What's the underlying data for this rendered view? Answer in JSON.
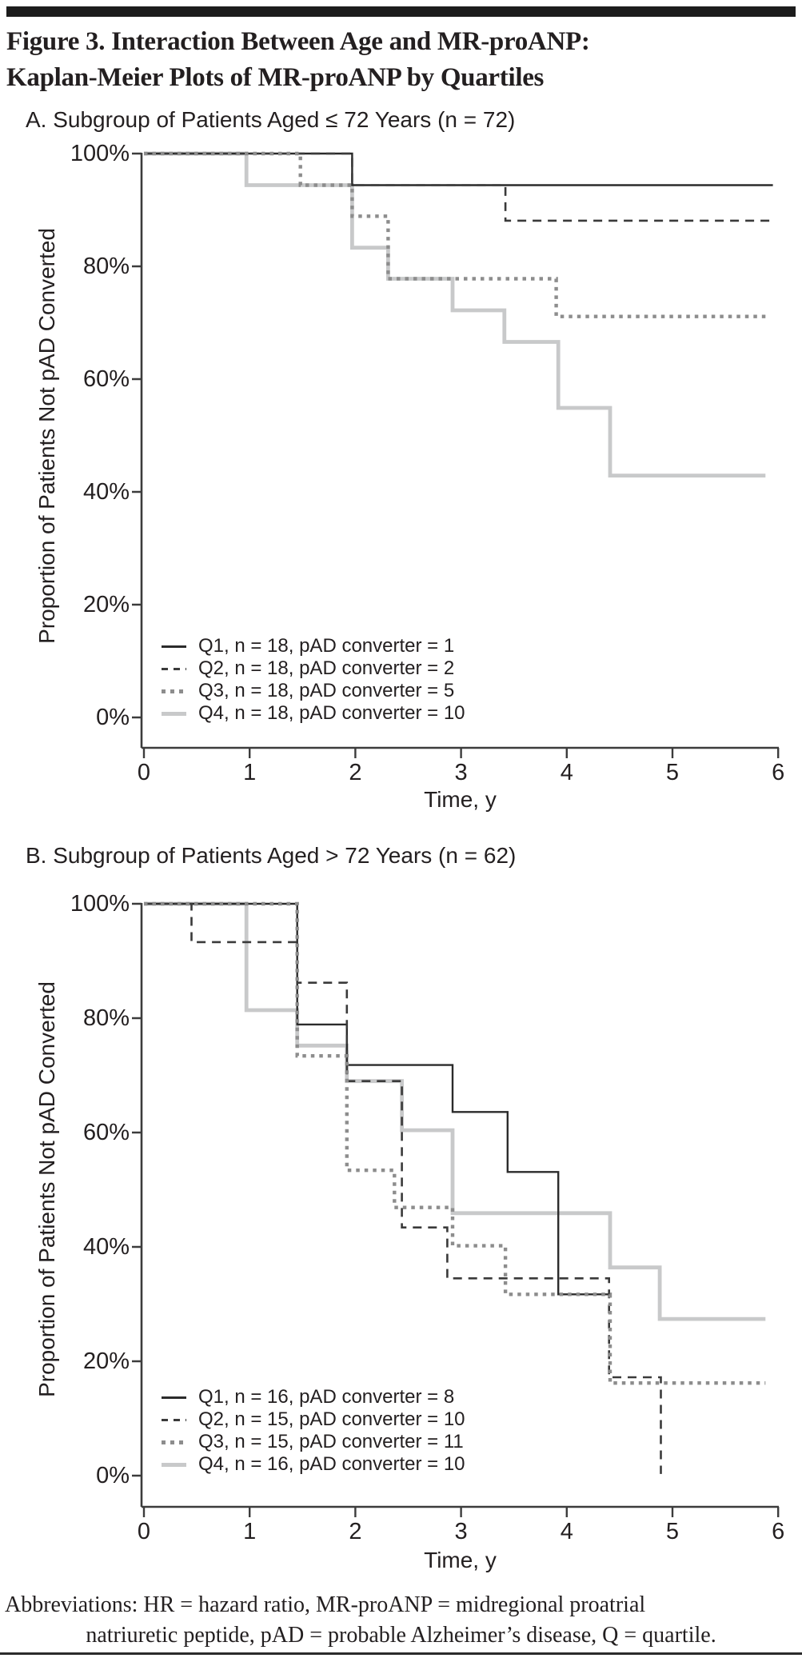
{
  "figure": {
    "title_line1": "Figure 3. Interaction Between Age and MR-proANP:",
    "title_line2": "Kaplan-Meier Plots of MR-proANP by Quartiles",
    "footer_line1": "Abbreviations: HR = hazard ratio, MR-proANP = midregional proatrial",
    "footer_line2": "natriuretic peptide, pAD = probable Alzheimer’s disease, Q = quartile."
  },
  "colors": {
    "q1_black": "#2b2b2b",
    "q2_dark_dashed": "#3a3a3a",
    "q3_gray_dotted": "#8d8d8d",
    "q4_light_gray": "#c8c9ca",
    "axis": "#3c3c3c",
    "text": "#231f20"
  },
  "chart_data": [
    {
      "type": "line",
      "subtype": "kaplan-meier-step",
      "panel_label": "A. Subgroup of Patients Aged ≤ 72 Years (n = 72)",
      "xlabel": "Time, y",
      "ylabel": "Proportion of Patients Not pAD Converted",
      "xlim": [
        0,
        6
      ],
      "ylim": [
        0,
        100
      ],
      "x_ticks": [
        0,
        1,
        2,
        3,
        4,
        5,
        6
      ],
      "y_tick_labels": [
        "100%",
        "80%",
        "60%",
        "40%",
        "20%",
        "0%"
      ],
      "y_tick_values": [
        100,
        80,
        60,
        40,
        20,
        0
      ],
      "grid": false,
      "legend_position": "inside-bottom-left",
      "series": [
        {
          "name": "Q1",
          "label": "Q1, n = 18, pAD converter = 1",
          "style": "solid-black",
          "steps": [
            [
              0,
              100
            ],
            [
              1.97,
              100
            ],
            [
              1.97,
              94.4
            ],
            [
              5.95,
              94.4
            ]
          ]
        },
        {
          "name": "Q2",
          "label": "Q2, n = 18, pAD converter = 2",
          "style": "dashed-black",
          "steps": [
            [
              0,
              100
            ],
            [
              1.97,
              100
            ],
            [
              1.97,
              94.4
            ],
            [
              3.42,
              94.4
            ],
            [
              3.42,
              88.1
            ],
            [
              5.95,
              88.1
            ]
          ]
        },
        {
          "name": "Q3",
          "label": "Q3, n = 18, pAD converter = 5",
          "style": "dotted-gray",
          "steps": [
            [
              0,
              100
            ],
            [
              1.48,
              100
            ],
            [
              1.48,
              94.4
            ],
            [
              1.97,
              94.4
            ],
            [
              1.97,
              88.9
            ],
            [
              2.31,
              88.9
            ],
            [
              2.31,
              77.8
            ],
            [
              3.9,
              77.8
            ],
            [
              3.9,
              71.1
            ],
            [
              5.88,
              71.1
            ]
          ]
        },
        {
          "name": "Q4",
          "label": "Q4, n = 18, pAD converter = 10",
          "style": "solid-lightgray",
          "steps": [
            [
              0,
              100
            ],
            [
              0.97,
              100
            ],
            [
              0.97,
              94.4
            ],
            [
              1.97,
              94.4
            ],
            [
              1.97,
              83.3
            ],
            [
              2.31,
              83.3
            ],
            [
              2.31,
              77.8
            ],
            [
              2.92,
              77.8
            ],
            [
              2.92,
              72.2
            ],
            [
              3.41,
              72.2
            ],
            [
              3.41,
              66.6
            ],
            [
              3.92,
              66.6
            ],
            [
              3.92,
              54.9
            ],
            [
              4.41,
              54.9
            ],
            [
              4.41,
              42.9
            ],
            [
              5.88,
              42.9
            ]
          ]
        }
      ]
    },
    {
      "type": "line",
      "subtype": "kaplan-meier-step",
      "panel_label": "B. Subgroup of Patients Aged > 72 Years (n = 62)",
      "xlabel": "Time, y",
      "ylabel": "Proportion of Patients Not pAD Converted",
      "xlim": [
        0,
        6
      ],
      "ylim": [
        0,
        100
      ],
      "x_ticks": [
        0,
        1,
        2,
        3,
        4,
        5,
        6
      ],
      "y_tick_labels": [
        "100%",
        "80%",
        "60%",
        "40%",
        "20%",
        "0%"
      ],
      "y_tick_values": [
        100,
        80,
        60,
        40,
        20,
        0
      ],
      "grid": false,
      "legend_position": "inside-bottom-left",
      "series": [
        {
          "name": "Q1",
          "label": "Q1, n = 16, pAD converter = 8",
          "style": "solid-black",
          "steps": [
            [
              0,
              100
            ],
            [
              1.45,
              100
            ],
            [
              1.45,
              78.9
            ],
            [
              1.92,
              78.9
            ],
            [
              1.92,
              71.8
            ],
            [
              2.92,
              71.8
            ],
            [
              2.92,
              63.6
            ],
            [
              3.44,
              63.6
            ],
            [
              3.44,
              53.1
            ],
            [
              3.92,
              53.1
            ],
            [
              3.92,
              31.7
            ],
            [
              4.41,
              31.7
            ]
          ]
        },
        {
          "name": "Q2",
          "label": "Q2, n = 15, pAD converter = 10",
          "style": "dashed-black",
          "steps": [
            [
              0,
              100
            ],
            [
              0.45,
              100
            ],
            [
              0.45,
              93.3
            ],
            [
              1.45,
              93.3
            ],
            [
              1.45,
              86.2
            ],
            [
              1.92,
              86.2
            ],
            [
              1.92,
              69
            ],
            [
              2.44,
              69
            ],
            [
              2.44,
              43.4
            ],
            [
              2.87,
              43.4
            ],
            [
              2.87,
              34.5
            ],
            [
              4.4,
              34.5
            ],
            [
              4.4,
              17.2
            ],
            [
              4.89,
              17.2
            ],
            [
              4.89,
              0.3
            ]
          ]
        },
        {
          "name": "Q3",
          "label": "Q3, n = 15, pAD converter = 11",
          "style": "dotted-gray",
          "steps": [
            [
              0,
              100
            ],
            [
              1.45,
              100
            ],
            [
              1.45,
              73.4
            ],
            [
              1.92,
              73.4
            ],
            [
              1.92,
              53.4
            ],
            [
              2.37,
              53.4
            ],
            [
              2.37,
              46.9
            ],
            [
              2.92,
              46.9
            ],
            [
              2.92,
              40.2
            ],
            [
              3.42,
              40.2
            ],
            [
              3.42,
              31.7
            ],
            [
              4.41,
              31.7
            ],
            [
              4.41,
              16.2
            ],
            [
              5.88,
              16.2
            ]
          ]
        },
        {
          "name": "Q4",
          "label": "Q4, n = 16, pAD converter = 10",
          "style": "solid-lightgray",
          "steps": [
            [
              0,
              100
            ],
            [
              0.97,
              100
            ],
            [
              0.97,
              81.4
            ],
            [
              1.45,
              81.4
            ],
            [
              1.45,
              75.2
            ],
            [
              1.92,
              75.2
            ],
            [
              1.92,
              69
            ],
            [
              2.44,
              69
            ],
            [
              2.44,
              60.4
            ],
            [
              2.92,
              60.4
            ],
            [
              2.92,
              45.9
            ],
            [
              4.41,
              45.9
            ],
            [
              4.41,
              36.4
            ],
            [
              4.88,
              36.4
            ],
            [
              4.88,
              27.4
            ],
            [
              5.88,
              27.4
            ]
          ]
        }
      ]
    }
  ]
}
